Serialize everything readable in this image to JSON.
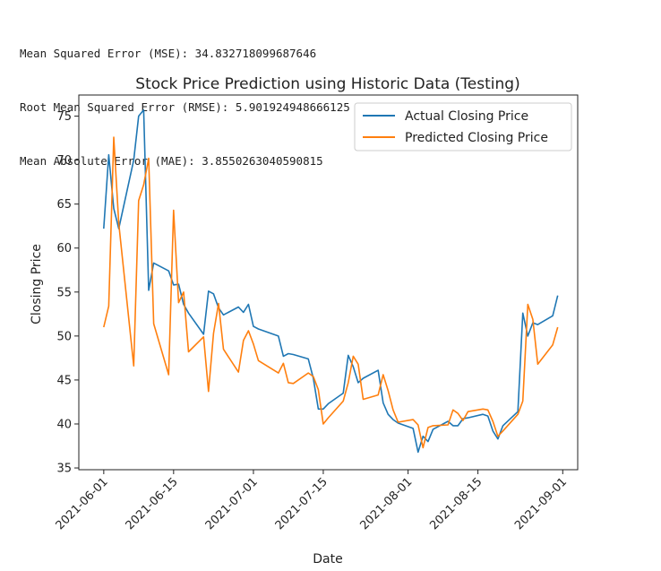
{
  "metrics": {
    "mse": "Mean Squared Error (MSE): 34.832718099687646",
    "rmse": "Root Mean Squared Error (RMSE): 5.901924948666125",
    "mae": "Mean Absolute Error (MAE): 3.8550263040590815"
  },
  "colors": {
    "actual": "#1f77b4",
    "predicted": "#ff7f0e"
  },
  "chart_data": {
    "type": "line",
    "title": "Stock Price Prediction using Historic Data (Testing)",
    "xlabel": "Date",
    "ylabel": "Closing Price",
    "xlim": [
      "2021-05-27",
      "2021-09-04"
    ],
    "ylim": [
      34.8,
      77.4
    ],
    "yticks": [
      35,
      40,
      45,
      50,
      55,
      60,
      65,
      70,
      75
    ],
    "xticks": [
      "2021-06-01",
      "2021-06-15",
      "2021-07-01",
      "2021-07-15",
      "2021-08-01",
      "2021-08-15",
      "2021-09-01"
    ],
    "legend_position": "top-right",
    "x": [
      "2021-06-01",
      "2021-06-02",
      "2021-06-03",
      "2021-06-04",
      "2021-06-07",
      "2021-06-08",
      "2021-06-09",
      "2021-06-10",
      "2021-06-11",
      "2021-06-14",
      "2021-06-15",
      "2021-06-16",
      "2021-06-17",
      "2021-06-18",
      "2021-06-21",
      "2021-06-22",
      "2021-06-23",
      "2021-06-24",
      "2021-06-25",
      "2021-06-28",
      "2021-06-29",
      "2021-06-30",
      "2021-07-01",
      "2021-07-02",
      "2021-07-06",
      "2021-07-07",
      "2021-07-08",
      "2021-07-09",
      "2021-07-12",
      "2021-07-13",
      "2021-07-14",
      "2021-07-15",
      "2021-07-16",
      "2021-07-19",
      "2021-07-20",
      "2021-07-21",
      "2021-07-22",
      "2021-07-23",
      "2021-07-26",
      "2021-07-27",
      "2021-07-28",
      "2021-07-29",
      "2021-07-30",
      "2021-08-02",
      "2021-08-03",
      "2021-08-04",
      "2021-08-05",
      "2021-08-06",
      "2021-08-09",
      "2021-08-10",
      "2021-08-11",
      "2021-08-12",
      "2021-08-13",
      "2021-08-16",
      "2021-08-17",
      "2021-08-18",
      "2021-08-19",
      "2021-08-20",
      "2021-08-23",
      "2021-08-24",
      "2021-08-25",
      "2021-08-26",
      "2021-08-27",
      "2021-08-30",
      "2021-08-31"
    ],
    "series": [
      {
        "name": "Actual Closing Price",
        "values": [
          62.2,
          70.6,
          64.5,
          62.2,
          70.0,
          75.0,
          75.7,
          55.2,
          58.3,
          57.4,
          55.8,
          55.9,
          53.6,
          52.6,
          50.2,
          55.1,
          54.8,
          53.2,
          52.4,
          53.3,
          52.7,
          53.6,
          51.1,
          50.8,
          50.0,
          47.7,
          48.0,
          47.9,
          47.4,
          45.2,
          41.7,
          41.7,
          42.3,
          43.5,
          47.8,
          46.5,
          44.7,
          45.2,
          46.1,
          42.4,
          41.1,
          40.5,
          40.1,
          39.5,
          36.8,
          38.6,
          38.0,
          39.4,
          40.3,
          39.8,
          39.8,
          40.6,
          40.7,
          41.1,
          40.9,
          39.2,
          38.3,
          39.8,
          41.4,
          52.6,
          50.0,
          51.5,
          51.3,
          52.3,
          54.6
        ]
      },
      {
        "name": "Predicted Closing Price",
        "values": [
          51.0,
          53.4,
          72.6,
          62.8,
          46.6,
          65.4,
          67.2,
          70.2,
          51.4,
          45.6,
          64.3,
          53.8,
          55.0,
          48.2,
          49.9,
          43.7,
          50.3,
          53.7,
          48.5,
          45.9,
          49.5,
          50.6,
          49.1,
          47.2,
          45.8,
          46.9,
          44.7,
          44.6,
          45.8,
          45.4,
          43.9,
          40.0,
          40.7,
          42.6,
          44.7,
          47.7,
          46.8,
          42.8,
          43.3,
          45.6,
          43.8,
          41.6,
          40.2,
          40.5,
          39.9,
          37.3,
          39.6,
          39.8,
          39.9,
          41.6,
          41.2,
          40.4,
          41.4,
          41.7,
          41.6,
          40.3,
          38.6,
          39.2,
          41.1,
          42.6,
          53.6,
          51.9,
          46.8,
          49.0,
          51.0
        ]
      }
    ]
  }
}
